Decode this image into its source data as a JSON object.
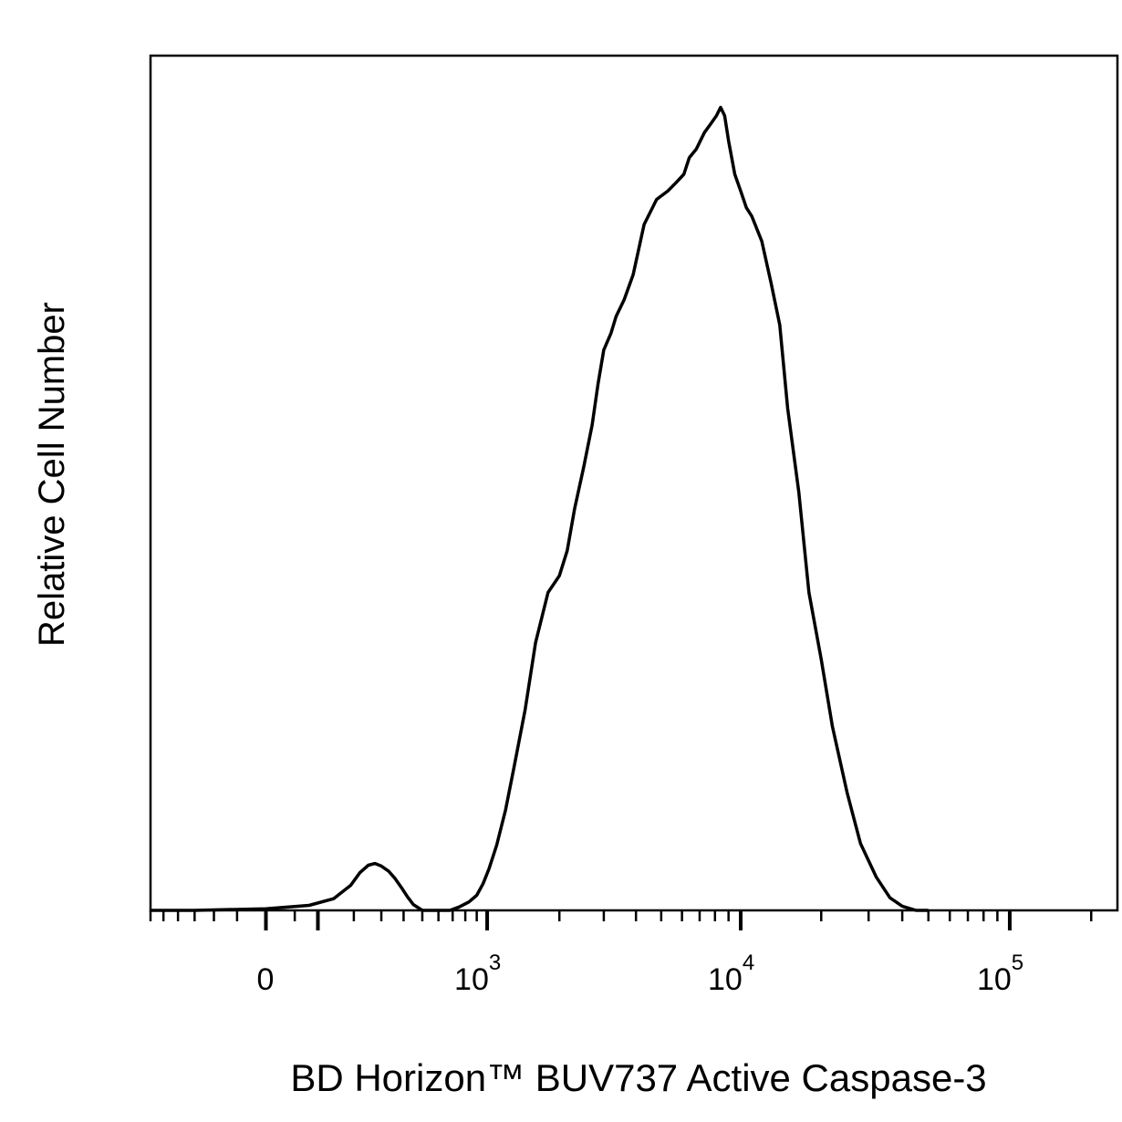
{
  "chart_data": {
    "type": "line",
    "subtype": "flow-cytometry-histogram",
    "xlabel": "BD Horizon™ BUV737 Active Caspase-3",
    "ylabel": "Relative Cell Number",
    "x_scale": "biexponential",
    "x_ticks": [
      {
        "value": 0,
        "base": "0",
        "exp": ""
      },
      {
        "value": 1000,
        "base": "10",
        "exp": "3"
      },
      {
        "value": 10000,
        "base": "10",
        "exp": "4"
      },
      {
        "value": 100000,
        "base": "10",
        "exp": "5"
      }
    ],
    "xlim": [
      -300,
      250000
    ],
    "ylim": [
      0,
      1
    ],
    "grid": false,
    "legend": "none",
    "line_color": "#000000",
    "series": [
      {
        "x": [
          -300,
          -150,
          0,
          80,
          140,
          190,
          220,
          250,
          275,
          300,
          330,
          360,
          390,
          420,
          450,
          500,
          560,
          620,
          680,
          750,
          830,
          900,
          960,
          1020,
          1100,
          1200,
          1300,
          1450,
          1600,
          1800,
          2000,
          2150,
          2300,
          2500,
          2700,
          2850,
          3000,
          3200,
          3350,
          3600,
          3900,
          4300,
          4800,
          5300,
          5700,
          6100,
          6400,
          6800,
          7300,
          7700,
          8100,
          8400,
          8700,
          9000,
          9500,
          10000,
          10500,
          11000,
          12000,
          13000,
          14000,
          15000,
          16500,
          18000,
          20000,
          22000,
          25000,
          28000,
          32000,
          36000,
          40000,
          45000,
          50000
        ],
        "y": [
          0,
          0,
          0.002,
          0.006,
          0.014,
          0.03,
          0.045,
          0.054,
          0.056,
          0.053,
          0.047,
          0.038,
          0.027,
          0.016,
          0.007,
          0,
          0,
          0,
          0,
          0.004,
          0.01,
          0.018,
          0.032,
          0.05,
          0.078,
          0.12,
          0.17,
          0.24,
          0.32,
          0.38,
          0.4,
          0.43,
          0.48,
          0.53,
          0.58,
          0.63,
          0.67,
          0.69,
          0.71,
          0.73,
          0.76,
          0.82,
          0.85,
          0.86,
          0.87,
          0.88,
          0.9,
          0.91,
          0.93,
          0.94,
          0.95,
          0.96,
          0.95,
          0.92,
          0.88,
          0.86,
          0.84,
          0.83,
          0.8,
          0.75,
          0.7,
          0.6,
          0.5,
          0.38,
          0.3,
          0.22,
          0.14,
          0.08,
          0.04,
          0.015,
          0.005,
          0,
          0
        ]
      }
    ]
  }
}
